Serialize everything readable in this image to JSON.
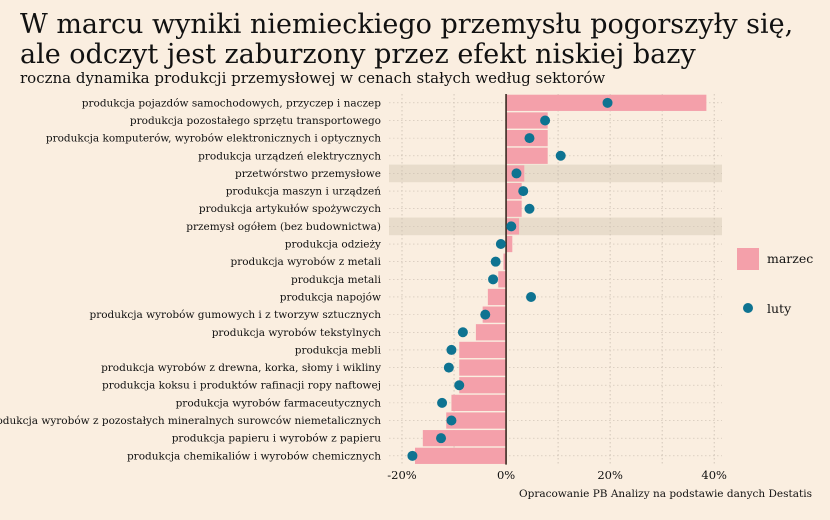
{
  "title_line1": "W marcu wyniki niemieckiego przemysłu pogorszyły się,",
  "title_line2": "ale odczyt jest zaburzony przez efekt niskiej bazy",
  "subtitle": "roczna dynamika produkcji przemysłowej w cenach stałych według sektorów",
  "caption": "Opracowanie PB Analizy na podstawie danych Destatis",
  "colors": {
    "background": "#FAEEE0",
    "bar": "#F4A0AA",
    "dot": "#0E7391",
    "highlight": "#E8DCCB",
    "zero_line": "#3A2A22",
    "grid": "#C9BDB0"
  },
  "chart_data": {
    "type": "bar",
    "orientation": "horizontal",
    "categories": [
      "produkcja pojazdów samochodowych, przyczep i naczep",
      "produkcja pozostałego sprzętu transportowego",
      "produkcja komputerów, wyrobów elektronicznych i optycznych",
      "produkcja urządzeń elektrycznych",
      "przetwórstwo przemysłowe",
      "produkcja maszyn i urządzeń",
      "produkcja artykułów spożywczych",
      "przemysł ogółem (bez budownictwa)",
      "produkcja odzieży",
      "produkcja wyrobów z metali",
      "produkcja metali",
      "produkcja napojów",
      "produkcja wyrobów gumowych i z tworzyw sztucznych",
      "produkcja wyrobów tekstylnych",
      "produkcja mebli",
      "produkcja wyrobów z drewna, korka, słomy i wikliny",
      "produkcja koksu i produktów rafinacji ropy naftowej",
      "produkcja wyrobów farmaceutycznych",
      "produkcja wyrobów z pozostałych mineralnych surowców niemetalicznych",
      "produkcja papieru i wyrobów z papieru",
      "produkcja chemikaliów i wyrobów chemicznych"
    ],
    "highlighted_categories": [
      "przetwórstwo przemysłowe",
      "przemysł ogółem (bez budownictwa)"
    ],
    "series": [
      {
        "name": "marzec",
        "mark": "bar",
        "values": [
          38.5,
          8.0,
          8.0,
          8.0,
          3.5,
          3.0,
          3.0,
          2.5,
          1.2,
          -0.5,
          -1.5,
          -3.5,
          -4.5,
          -5.8,
          -9.0,
          -9.0,
          -9.0,
          -10.5,
          -11.5,
          -16.0,
          -17.5
        ]
      },
      {
        "name": "luty",
        "mark": "dot",
        "values": [
          19.5,
          7.5,
          4.5,
          10.5,
          2.0,
          3.3,
          4.5,
          1.0,
          -1.0,
          -2.0,
          -2.5,
          4.8,
          -4.0,
          -8.3,
          -10.5,
          -11.0,
          -9.0,
          -12.3,
          -10.5,
          -12.5,
          -18.0
        ]
      }
    ],
    "xticks": [
      "-20%",
      "0%",
      "20%",
      "40%"
    ],
    "xtick_values": [
      -20,
      0,
      20,
      40
    ],
    "xlim": [
      -22.5,
      41.5
    ],
    "grid": true,
    "legend_position": "right"
  }
}
